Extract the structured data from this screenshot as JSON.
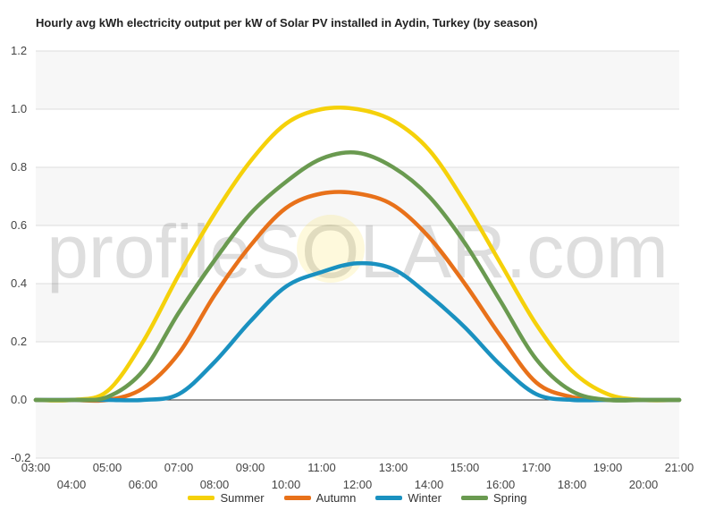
{
  "chart_data": {
    "type": "line",
    "title": "Hourly avg kWh electricity output per kW of Solar PV installed in Aydin, Turkey (by season)",
    "watermark": "profileSOLAR.com",
    "xlabel": "",
    "ylabel": "",
    "x_tick_labels": [
      "03:00",
      "04:00",
      "05:00",
      "06:00",
      "07:00",
      "08:00",
      "09:00",
      "10:00",
      "11:00",
      "12:00",
      "13:00",
      "14:00",
      "15:00",
      "16:00",
      "17:00",
      "18:00",
      "19:00",
      "20:00",
      "21:00"
    ],
    "y_ticks": [
      -0.2,
      0.0,
      0.2,
      0.4,
      0.6,
      0.8,
      1.0,
      1.2
    ],
    "y_tick_labels": [
      "-0.2",
      "0.0",
      "0.2",
      "0.4",
      "0.6",
      "0.8",
      "1.0",
      "1.2"
    ],
    "ylim": [
      -0.2,
      1.2
    ],
    "grid": true,
    "legend_position": "bottom",
    "x": [
      3,
      4,
      5,
      6,
      7,
      8,
      9,
      10,
      11,
      12,
      13,
      14,
      15,
      16,
      17,
      18,
      19,
      20,
      21
    ],
    "series": [
      {
        "name": "Summer",
        "color": "#f5d10a",
        "values": [
          0.0,
          0.0,
          0.03,
          0.2,
          0.43,
          0.64,
          0.82,
          0.95,
          1.0,
          1.0,
          0.96,
          0.86,
          0.68,
          0.47,
          0.26,
          0.1,
          0.02,
          0.0,
          0.0
        ]
      },
      {
        "name": "Autumn",
        "color": "#e8711a",
        "values": [
          0.0,
          0.0,
          0.0,
          0.04,
          0.16,
          0.36,
          0.53,
          0.66,
          0.71,
          0.71,
          0.67,
          0.56,
          0.4,
          0.22,
          0.06,
          0.01,
          0.0,
          0.0,
          0.0
        ]
      },
      {
        "name": "Winter",
        "color": "#1a91c0",
        "values": [
          0.0,
          0.0,
          0.0,
          0.0,
          0.02,
          0.13,
          0.27,
          0.39,
          0.44,
          0.47,
          0.45,
          0.36,
          0.25,
          0.12,
          0.02,
          0.0,
          0.0,
          0.0,
          0.0
        ]
      },
      {
        "name": "Spring",
        "color": "#6a9a50",
        "values": [
          0.0,
          0.0,
          0.01,
          0.1,
          0.3,
          0.48,
          0.64,
          0.75,
          0.83,
          0.85,
          0.8,
          0.7,
          0.54,
          0.34,
          0.14,
          0.03,
          0.0,
          0.0,
          0.0
        ]
      }
    ]
  }
}
